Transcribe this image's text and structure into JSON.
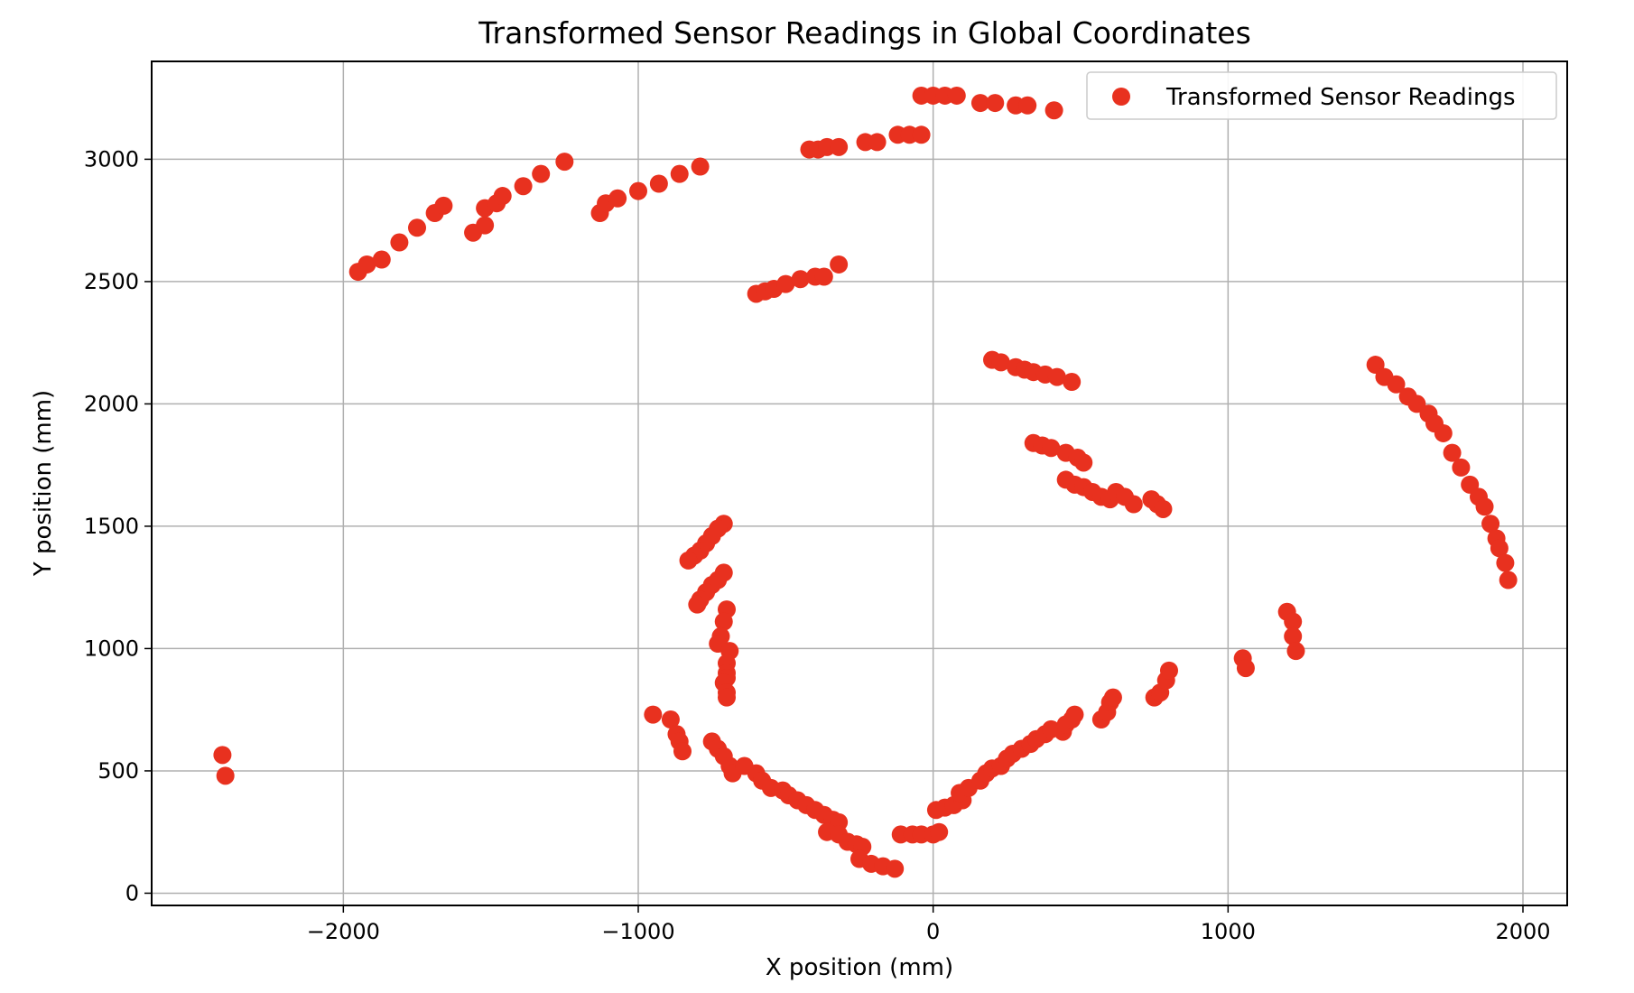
{
  "chart_data": {
    "type": "scatter",
    "title": "Transformed Sensor Readings in Global Coordinates",
    "xlabel": "X position (mm)",
    "ylabel": "Y position (mm)",
    "xlim": [
      -2650,
      2150
    ],
    "ylim": [
      -50,
      3400
    ],
    "xticks": [
      -2000,
      -1000,
      0,
      1000,
      2000
    ],
    "yticks": [
      0,
      500,
      1000,
      1500,
      2000,
      2500,
      3000
    ],
    "xtick_labels": [
      "−2000",
      "−1000",
      "0",
      "1000",
      "2000"
    ],
    "ytick_labels": [
      "0",
      "500",
      "1000",
      "1500",
      "2000",
      "2500",
      "3000"
    ],
    "grid": true,
    "legend_position": "top-right",
    "color": "#e8311f",
    "series": [
      {
        "name": "Transformed Sensor Readings",
        "points": [
          [
            -2410,
            565
          ],
          [
            -2400,
            480
          ],
          [
            -1950,
            2540
          ],
          [
            -1920,
            2570
          ],
          [
            -1870,
            2590
          ],
          [
            -1810,
            2660
          ],
          [
            -1750,
            2720
          ],
          [
            -1690,
            2780
          ],
          [
            -1660,
            2810
          ],
          [
            -1560,
            2700
          ],
          [
            -1520,
            2730
          ],
          [
            -1520,
            2800
          ],
          [
            -1480,
            2820
          ],
          [
            -1460,
            2850
          ],
          [
            -1390,
            2890
          ],
          [
            -1330,
            2940
          ],
          [
            -1250,
            2990
          ],
          [
            -1130,
            2780
          ],
          [
            -1110,
            2820
          ],
          [
            -1070,
            2840
          ],
          [
            -1000,
            2870
          ],
          [
            -930,
            2900
          ],
          [
            -860,
            2940
          ],
          [
            -790,
            2970
          ],
          [
            -600,
            2450
          ],
          [
            -570,
            2460
          ],
          [
            -540,
            2470
          ],
          [
            -500,
            2490
          ],
          [
            -450,
            2510
          ],
          [
            -400,
            2520
          ],
          [
            -370,
            2520
          ],
          [
            -320,
            2570
          ],
          [
            -420,
            3040
          ],
          [
            -390,
            3040
          ],
          [
            -360,
            3050
          ],
          [
            -320,
            3050
          ],
          [
            -230,
            3070
          ],
          [
            -190,
            3070
          ],
          [
            -120,
            3100
          ],
          [
            -80,
            3100
          ],
          [
            -40,
            3100
          ],
          [
            -40,
            3260
          ],
          [
            0,
            3260
          ],
          [
            40,
            3260
          ],
          [
            80,
            3260
          ],
          [
            160,
            3230
          ],
          [
            210,
            3230
          ],
          [
            280,
            3220
          ],
          [
            320,
            3220
          ],
          [
            410,
            3200
          ],
          [
            200,
            2180
          ],
          [
            230,
            2170
          ],
          [
            280,
            2150
          ],
          [
            310,
            2140
          ],
          [
            340,
            2130
          ],
          [
            380,
            2120
          ],
          [
            420,
            2110
          ],
          [
            470,
            2090
          ],
          [
            340,
            1840
          ],
          [
            370,
            1830
          ],
          [
            400,
            1820
          ],
          [
            450,
            1800
          ],
          [
            490,
            1780
          ],
          [
            510,
            1760
          ],
          [
            450,
            1690
          ],
          [
            480,
            1670
          ],
          [
            510,
            1660
          ],
          [
            540,
            1640
          ],
          [
            570,
            1620
          ],
          [
            600,
            1610
          ],
          [
            620,
            1640
          ],
          [
            650,
            1620
          ],
          [
            680,
            1590
          ],
          [
            740,
            1610
          ],
          [
            760,
            1590
          ],
          [
            780,
            1570
          ],
          [
            1500,
            2160
          ],
          [
            1530,
            2110
          ],
          [
            1570,
            2080
          ],
          [
            1610,
            2030
          ],
          [
            1640,
            2000
          ],
          [
            1680,
            1960
          ],
          [
            1700,
            1920
          ],
          [
            1730,
            1880
          ],
          [
            1760,
            1800
          ],
          [
            1790,
            1740
          ],
          [
            1820,
            1670
          ],
          [
            1850,
            1620
          ],
          [
            1870,
            1580
          ],
          [
            1890,
            1510
          ],
          [
            1910,
            1450
          ],
          [
            1920,
            1410
          ],
          [
            1940,
            1350
          ],
          [
            1950,
            1280
          ],
          [
            1200,
            1150
          ],
          [
            1220,
            1110
          ],
          [
            1220,
            1050
          ],
          [
            1230,
            990
          ],
          [
            1050,
            960
          ],
          [
            1060,
            920
          ],
          [
            750,
            800
          ],
          [
            770,
            820
          ],
          [
            790,
            870
          ],
          [
            800,
            910
          ],
          [
            570,
            710
          ],
          [
            590,
            740
          ],
          [
            600,
            780
          ],
          [
            610,
            800
          ],
          [
            -710,
            1510
          ],
          [
            -730,
            1490
          ],
          [
            -750,
            1460
          ],
          [
            -770,
            1430
          ],
          [
            -790,
            1400
          ],
          [
            -810,
            1380
          ],
          [
            -830,
            1360
          ],
          [
            -710,
            1310
          ],
          [
            -730,
            1280
          ],
          [
            -750,
            1260
          ],
          [
            -770,
            1230
          ],
          [
            -790,
            1200
          ],
          [
            -800,
            1180
          ],
          [
            -700,
            1160
          ],
          [
            -710,
            1110
          ],
          [
            -720,
            1050
          ],
          [
            -730,
            1020
          ],
          [
            -690,
            990
          ],
          [
            -700,
            940
          ],
          [
            -700,
            900
          ],
          [
            -700,
            880
          ],
          [
            -710,
            860
          ],
          [
            -700,
            820
          ],
          [
            -700,
            800
          ],
          [
            -950,
            730
          ],
          [
            -890,
            710
          ],
          [
            -870,
            650
          ],
          [
            -860,
            620
          ],
          [
            -850,
            580
          ],
          [
            -750,
            620
          ],
          [
            -730,
            590
          ],
          [
            -710,
            560
          ],
          [
            -690,
            520
          ],
          [
            -680,
            490
          ],
          [
            -640,
            520
          ],
          [
            -600,
            490
          ],
          [
            -580,
            460
          ],
          [
            -550,
            430
          ],
          [
            -510,
            420
          ],
          [
            -490,
            400
          ],
          [
            -460,
            380
          ],
          [
            -430,
            360
          ],
          [
            -400,
            340
          ],
          [
            -370,
            320
          ],
          [
            -340,
            300
          ],
          [
            -320,
            290
          ],
          [
            -360,
            250
          ],
          [
            -320,
            240
          ],
          [
            -290,
            210
          ],
          [
            -260,
            200
          ],
          [
            -240,
            190
          ],
          [
            -250,
            140
          ],
          [
            -210,
            120
          ],
          [
            -170,
            110
          ],
          [
            -130,
            100
          ],
          [
            -110,
            240
          ],
          [
            -70,
            240
          ],
          [
            -40,
            240
          ],
          [
            0,
            240
          ],
          [
            20,
            250
          ],
          [
            10,
            340
          ],
          [
            40,
            350
          ],
          [
            70,
            360
          ],
          [
            100,
            380
          ],
          [
            90,
            410
          ],
          [
            120,
            430
          ],
          [
            160,
            460
          ],
          [
            180,
            490
          ],
          [
            200,
            510
          ],
          [
            230,
            520
          ],
          [
            250,
            550
          ],
          [
            270,
            570
          ],
          [
            300,
            590
          ],
          [
            330,
            610
          ],
          [
            350,
            630
          ],
          [
            380,
            650
          ],
          [
            400,
            670
          ],
          [
            440,
            660
          ],
          [
            450,
            690
          ],
          [
            470,
            710
          ],
          [
            480,
            730
          ]
        ]
      }
    ]
  }
}
